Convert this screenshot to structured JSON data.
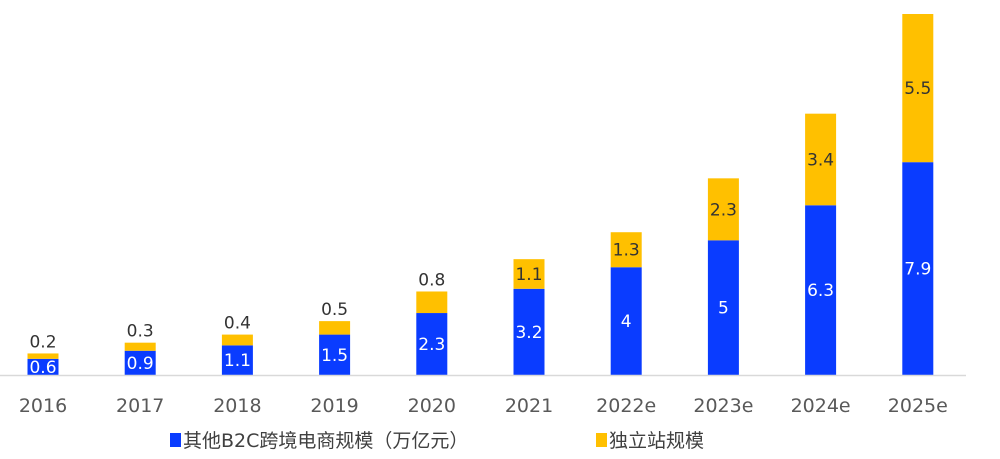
{
  "chart_data": {
    "type": "bar",
    "stacked": true,
    "title": "",
    "xlabel": "",
    "ylabel": "",
    "categories": [
      "2016",
      "2017",
      "2018",
      "2019",
      "2020",
      "2021",
      "2022e",
      "2023e",
      "2024e",
      "2025e"
    ],
    "series": [
      {
        "name": "其他B2C跨境电商规模（万亿元）",
        "color": "#0a3cff",
        "values": [
          0.6,
          0.9,
          1.1,
          1.5,
          2.3,
          3.2,
          4,
          5,
          6.3,
          7.9
        ]
      },
      {
        "name": "独立站规模",
        "color": "#ffc000",
        "values": [
          0.2,
          0.3,
          0.4,
          0.5,
          0.8,
          1.1,
          1.3,
          2.3,
          3.4,
          5.5
        ]
      }
    ],
    "ylim": [
      0,
      13.4
    ],
    "grid": false,
    "legend": "bottom"
  }
}
